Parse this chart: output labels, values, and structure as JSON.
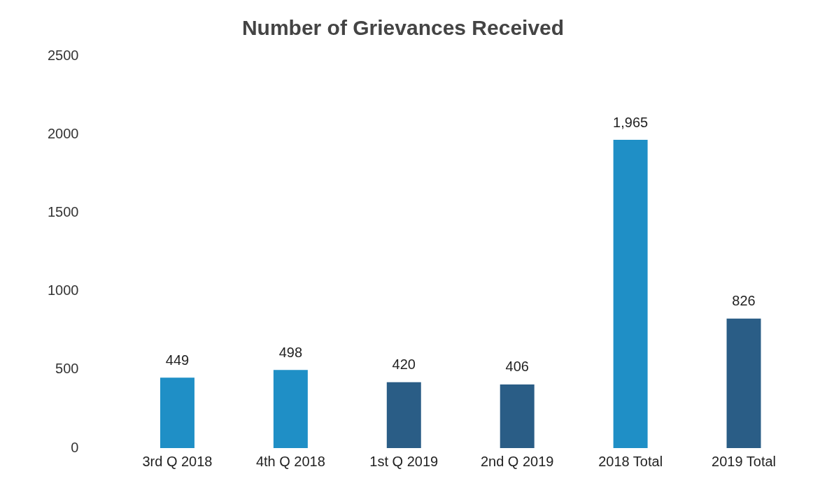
{
  "chart_data": {
    "type": "bar",
    "title": "Number of Grievances Received",
    "categories": [
      "3rd Q 2018",
      "4th Q 2018",
      "1st Q 2019",
      "2nd Q 2019",
      "2018 Total",
      "2019 Total"
    ],
    "values": [
      449,
      498,
      420,
      406,
      1965,
      826
    ],
    "colors": [
      "#1f8fc6",
      "#1f8fc6",
      "#2a5d86",
      "#2a5d86",
      "#1f8fc6",
      "#2a5d86"
    ],
    "value_labels": [
      "449",
      "498",
      "420",
      "406",
      "1,965",
      "826"
    ],
    "ylim": [
      0,
      2500
    ],
    "yticks": [
      0,
      500,
      1000,
      1500,
      2000,
      2500
    ],
    "grid": false,
    "legend": false
  }
}
